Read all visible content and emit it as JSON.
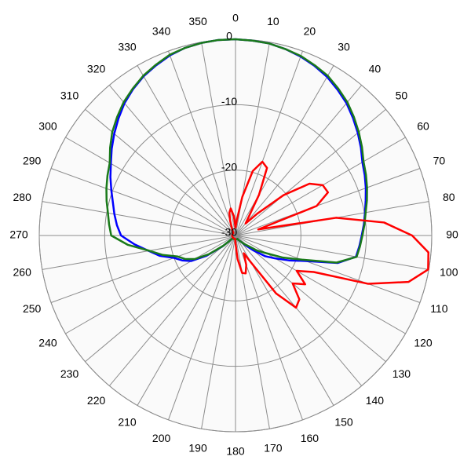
{
  "chart_data": {
    "type": "polar",
    "theta": [
      0,
      5,
      10,
      15,
      20,
      25,
      30,
      35,
      40,
      45,
      50,
      55,
      60,
      65,
      70,
      75,
      80,
      85,
      90,
      95,
      100,
      105,
      110,
      115,
      120,
      125,
      130,
      135,
      140,
      145,
      150,
      155,
      160,
      165,
      170,
      175,
      180,
      185,
      190,
      195,
      200,
      205,
      210,
      215,
      220,
      225,
      230,
      235,
      240,
      245,
      250,
      255,
      260,
      265,
      270,
      275,
      280,
      285,
      290,
      295,
      300,
      305,
      310,
      315,
      320,
      325,
      330,
      335,
      340,
      345,
      350,
      355
    ],
    "thetaticks": [
      0,
      10,
      20,
      30,
      40,
      50,
      60,
      70,
      80,
      90,
      100,
      110,
      120,
      130,
      140,
      150,
      160,
      170,
      180,
      190,
      200,
      210,
      220,
      230,
      240,
      250,
      260,
      270,
      280,
      290,
      300,
      310,
      320,
      330,
      340,
      350
    ],
    "rlim": [
      -30,
      0
    ],
    "rticks": [
      -30,
      -20,
      -10,
      0
    ],
    "grid": true,
    "series": [
      {
        "color": "#0000ff",
        "values": [
          0,
          -0.1,
          -0.2,
          -0.5,
          -0.9,
          -1.4,
          -2,
          -2.8,
          -3.6,
          -4.6,
          -5.6,
          -6.6,
          -7.6,
          -8.2,
          -8.8,
          -9.4,
          -9.9,
          -10.3,
          -10.7,
          -11,
          -11.3,
          -13.8,
          -18.6,
          -21,
          -23,
          -24.5,
          -26.5,
          -28,
          -28.8,
          -29.1,
          -29.4,
          -29.4,
          -29.4,
          -29.4,
          -29.4,
          -29.4,
          -29.4,
          -29.4,
          -29.4,
          -29.4,
          -29.4,
          -29.4,
          -29.4,
          -29.4,
          -29.4,
          -29.4,
          -27.4,
          -24.6,
          -22.2,
          -21,
          -20,
          -18,
          -16.5,
          -14.5,
          -12.5,
          -11.8,
          -11.2,
          -10.6,
          -9.8,
          -8.9,
          -8,
          -6.9,
          -5.8,
          -4.7,
          -3.6,
          -2.7,
          -1.9,
          -1.3,
          -0.7,
          -0.3,
          -0.1,
          0
        ]
      },
      {
        "color": "#1a7a1a",
        "values": [
          0,
          -0.1,
          -0.2,
          -0.5,
          -0.8,
          -1.3,
          -1.8,
          -2.6,
          -3.4,
          -4.4,
          -5.4,
          -6.4,
          -7.4,
          -8,
          -8.6,
          -9.2,
          -9.8,
          -10.2,
          -10.6,
          -10.9,
          -11.2,
          -14,
          -19.2,
          -22,
          -24.6,
          -26,
          -27.6,
          -28.2,
          -28.8,
          -29.1,
          -29.4,
          -29.4,
          -29.4,
          -29.4,
          -29.4,
          -29.4,
          -29.4,
          -29.4,
          -29.4,
          -29.4,
          -29.4,
          -29.4,
          -29.4,
          -29.4,
          -29.4,
          -29.4,
          -27.6,
          -25,
          -22.8,
          -21.5,
          -20.6,
          -18.5,
          -16.6,
          -13.5,
          -11,
          -10.6,
          -10.2,
          -9.6,
          -9,
          -8.4,
          -7.8,
          -6.6,
          -5.4,
          -4.4,
          -3.4,
          -2.6,
          -1.8,
          -1.2,
          -0.6,
          -0.3,
          -0.1,
          0
        ]
      },
      {
        "color": "#ff0000",
        "values": [
          -28.8,
          -27.6,
          -24,
          -19.8,
          -18,
          -18.6,
          -22.8,
          -26.4,
          -27.6,
          -25.2,
          -20.4,
          -16.2,
          -14.6,
          -14.4,
          -16.8,
          -26.4,
          -14.4,
          -7.2,
          -3,
          -0.4,
          -0.1,
          -2.6,
          -8.4,
          -16.8,
          -19.2,
          -17,
          -18.6,
          -16.2,
          -15.6,
          -19.2,
          -25.2,
          -27,
          -25.2,
          -24,
          -24.2,
          -26.4,
          -28.8,
          -29.4,
          -29.5,
          -29.5,
          -29.5,
          -29.5,
          -29.5,
          -29.5,
          -29.5,
          -29.5,
          -29.5,
          -29.5,
          -29.5,
          -29.5,
          -29.5,
          -29.5,
          -29.5,
          -29.5,
          -29.5,
          -29.5,
          -29.5,
          -29.5,
          -29.5,
          -29.5,
          -29.5,
          -29.5,
          -29.5,
          -29.5,
          -29.5,
          -29.3,
          -29,
          -28.6,
          -27.6,
          -26.4,
          -25.8,
          -27
        ]
      }
    ]
  }
}
